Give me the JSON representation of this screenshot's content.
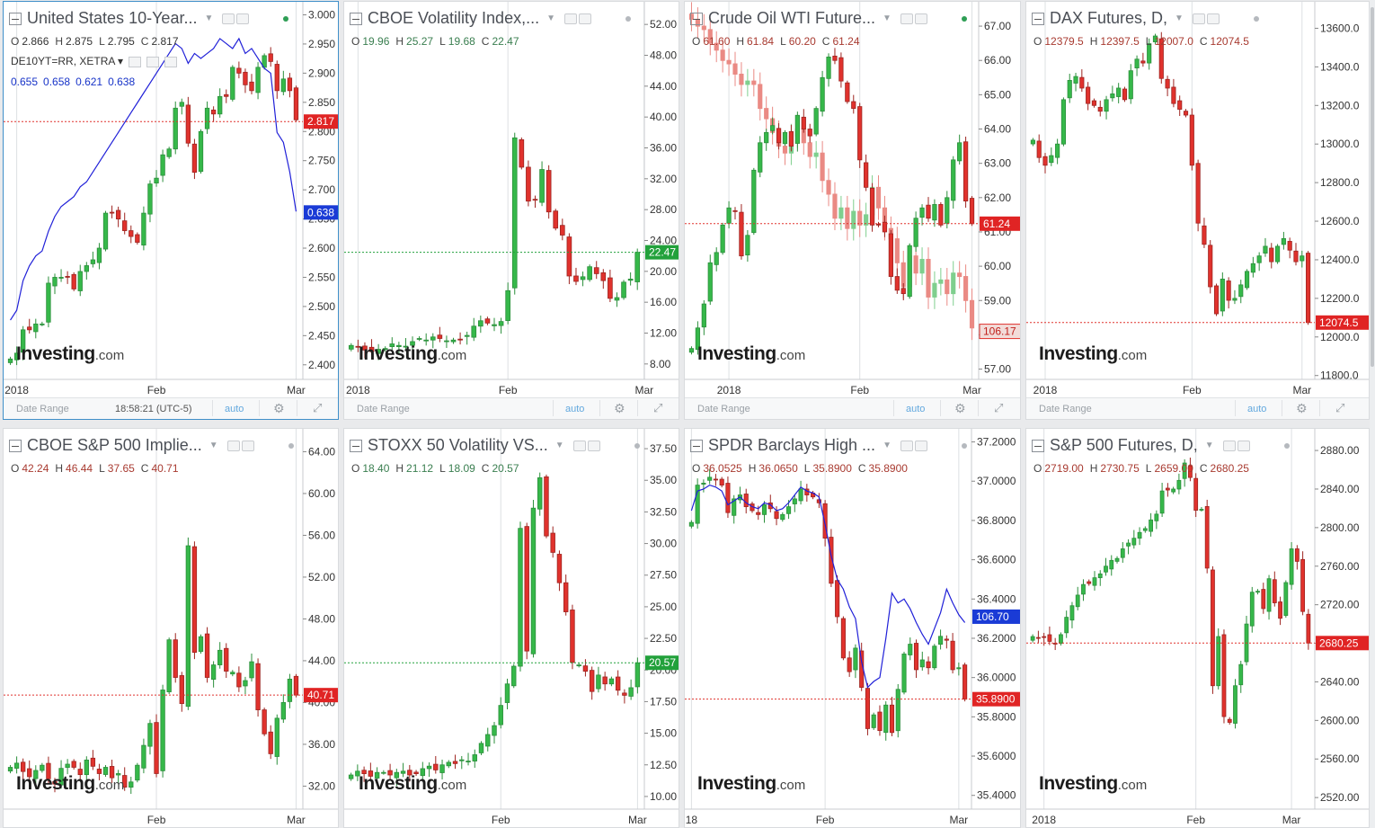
{
  "colors": {
    "up": "#36b84a",
    "down": "#e0322d",
    "up_price_tag": "#22a13b",
    "down_price_tag": "#e02424",
    "overlay_line": "#2020d8",
    "overlay_tag": "#1a3bd6",
    "grid": "#dde0e3",
    "price_line_down": "#e0322d",
    "price_line_up": "#22a13b"
  },
  "watermark": {
    "brand": "Investing",
    "suffix": ".com"
  },
  "bottom_bar": {
    "date_range": "Date Range",
    "time": "18:58:21 (UTC-5)",
    "auto": "auto"
  },
  "panels": [
    {
      "title": "United States 10-Year...",
      "active": true,
      "status": "green",
      "ohlc": [
        [
          "O",
          "2.866"
        ],
        [
          "H",
          "2.875"
        ],
        [
          "L",
          "2.795"
        ],
        [
          "C",
          "2.817"
        ]
      ],
      "subrow": "DE10YT=RR, XETRA",
      "subvals": [
        "0.655",
        "0.658",
        "0.621",
        "0.638"
      ],
      "show_time": true,
      "chart_data": {
        "type": "candlestick",
        "y_range": [
          2.375,
          3.01
        ],
        "decimals": 3,
        "y_ticks": [
          2.4,
          2.45,
          2.5,
          2.55,
          2.6,
          2.65,
          2.7,
          2.75,
          2.8,
          2.85,
          2.9,
          2.95,
          3.0
        ],
        "x_ticks": [
          {
            "label": "2018",
            "bar": 1
          },
          {
            "label": "Feb",
            "bar": 23
          },
          {
            "label": "Mar",
            "bar": 45
          }
        ],
        "closes": [
          2.41,
          2.42,
          2.46,
          2.46,
          2.47,
          2.47,
          2.54,
          2.55,
          2.55,
          2.55,
          2.53,
          2.56,
          2.57,
          2.58,
          2.6,
          2.66,
          2.66,
          2.65,
          2.63,
          2.62,
          2.61,
          2.66,
          2.71,
          2.72,
          2.76,
          2.77,
          2.84,
          2.85,
          2.78,
          2.73,
          2.8,
          2.84,
          2.83,
          2.86,
          2.86,
          2.91,
          2.9,
          2.88,
          2.87,
          2.91,
          2.93,
          2.92,
          2.87,
          2.89,
          2.87,
          2.82
        ],
        "price_tag": {
          "value": "2.817",
          "kind": "down",
          "at": 2.817
        },
        "overlay": {
          "values": [
            0.42,
            0.44,
            0.5,
            0.53,
            0.55,
            0.56,
            0.6,
            0.63,
            0.65,
            0.66,
            0.67,
            0.69,
            0.7,
            0.72,
            0.74,
            0.76,
            0.78,
            0.8,
            0.82,
            0.84,
            0.86,
            0.88,
            0.9,
            0.92,
            0.94,
            0.96,
            0.98,
            0.97,
            0.94,
            0.96,
            0.95,
            0.96,
            0.97,
            0.99,
            0.98,
            0.97,
            0.99,
            0.96,
            0.97,
            0.95,
            0.93,
            0.92,
            0.8,
            0.78,
            0.72,
            0.64
          ],
          "range": [
            0.3,
            1.05
          ],
          "tag": "0.638",
          "tag_at": 0.638
        }
      }
    },
    {
      "title": "CBOE Volatility Index,...",
      "status": "grey",
      "ohlc": [
        [
          "O",
          "19.96"
        ],
        [
          "H",
          "25.27"
        ],
        [
          "L",
          "19.68"
        ],
        [
          "C",
          "22.47"
        ]
      ],
      "ohlc_color": "up",
      "chart_data": {
        "type": "candlestick",
        "y_range": [
          6.0,
          54.0
        ],
        "decimals": 2,
        "y_ticks": [
          8,
          12,
          16,
          20,
          24,
          28,
          32,
          36,
          40,
          44,
          48,
          52
        ],
        "x_ticks": [
          {
            "label": "2018",
            "bar": 1
          },
          {
            "label": "Feb",
            "bar": 23
          },
          {
            "label": "Mar",
            "bar": 43
          }
        ],
        "closes": [
          10.4,
          10.2,
          9.8,
          9.6,
          9.9,
          10.0,
          10.6,
          10.4,
          10.3,
          10.9,
          11.3,
          11.1,
          11.5,
          11.3,
          11.0,
          11.1,
          11.2,
          11.7,
          12.9,
          13.6,
          13.3,
          13.1,
          13.5,
          17.5,
          37.3,
          33.5,
          29.1,
          29.3,
          33.2,
          27.7,
          25.6,
          24.7,
          19.4,
          18.7,
          19.3,
          20.6,
          19.7,
          18.8,
          16.5,
          16.6,
          18.6,
          19.0,
          22.47
        ],
        "price_tag": {
          "value": "22.47",
          "kind": "up",
          "at": 22.47
        }
      }
    },
    {
      "title": "Crude Oil WTI Future...",
      "status": "green",
      "ohlc": [
        [
          "O",
          "61.60"
        ],
        [
          "H",
          "61.84"
        ],
        [
          "L",
          "60.20"
        ],
        [
          "C",
          "61.24"
        ]
      ],
      "ohlc_color": "dn",
      "chart_data": {
        "type": "candlestick",
        "y_range": [
          56.7,
          67.5
        ],
        "decimals": 2,
        "y_ticks": [
          57,
          58,
          59,
          60,
          61,
          62,
          63,
          64,
          65,
          66,
          67
        ],
        "x_ticks": [
          {
            "label": "2018",
            "bar": 6
          },
          {
            "label": "Feb",
            "bar": 27
          },
          {
            "label": "Mar",
            "bar": 45
          }
        ],
        "closes": [
          57.6,
          58.2,
          58.9,
          60.1,
          60.4,
          61.2,
          61.7,
          61.6,
          60.3,
          60.9,
          62.8,
          63.6,
          63.9,
          64.1,
          63.6,
          63.9,
          63.5,
          64.4,
          64.0,
          63.8,
          64.6,
          65.5,
          66.1,
          66.0,
          65.4,
          64.8,
          64.6,
          63.1,
          62.3,
          61.2,
          61.2,
          61.0,
          59.7,
          59.3,
          59.2,
          60.6,
          61.4,
          61.7,
          61.4,
          61.8,
          61.2,
          62.0,
          63.1,
          63.6,
          61.9,
          61.24
        ],
        "price_tag": {
          "value": "61.24",
          "kind": "down",
          "at": 61.24
        },
        "overlay": {
          "values": [
            67.2,
            67.0,
            66.9,
            66.5,
            66.3,
            66.0,
            65.9,
            65.6,
            65.3,
            65.4,
            65.3,
            64.6,
            64.3,
            63.9,
            63.5,
            63.3,
            63.8,
            64.0,
            63.6,
            63.2,
            63.3,
            62.5,
            62.1,
            61.4,
            61.7,
            61.1,
            61.6,
            61.2,
            61.5,
            62.3,
            61.7,
            61.1,
            60.8,
            60.1,
            59.4,
            60.3,
            59.8,
            60.2,
            59.1,
            59.5,
            59.6,
            59.2,
            59.8,
            59.7,
            59.0,
            58.2
          ],
          "range": [
            56.7,
            67.5
          ],
          "candle": true,
          "tag": "106.17",
          "tag_at": 58.1
        }
      }
    },
    {
      "title": "DAX Futures, D,",
      "status": "grey",
      "ohlc": [
        [
          "O",
          "12379.5"
        ],
        [
          "H",
          "12397.5"
        ],
        [
          "L",
          "12007.0"
        ],
        [
          "C",
          "12074.5"
        ]
      ],
      "ohlc_color": "dn",
      "chart_data": {
        "type": "candlestick",
        "y_range": [
          11780,
          13700
        ],
        "decimals": 1,
        "y_ticks": [
          11800,
          12000,
          12200,
          12400,
          12600,
          12800,
          13000,
          13200,
          13400,
          13600
        ],
        "x_ticks": [
          {
            "label": "2018",
            "bar": 2
          },
          {
            "label": "Feb",
            "bar": 26
          },
          {
            "label": "Mar",
            "bar": 44
          }
        ],
        "closes": [
          13020,
          12930,
          12890,
          12940,
          13000,
          13230,
          13330,
          13350,
          13290,
          13210,
          13200,
          13170,
          13230,
          13260,
          13290,
          13230,
          13380,
          13440,
          13420,
          13520,
          13560,
          13340,
          13290,
          13210,
          13180,
          13150,
          12890,
          12590,
          12480,
          12260,
          12120,
          12300,
          12190,
          12200,
          12270,
          12340,
          12380,
          12420,
          12470,
          12390,
          12470,
          12510,
          12450,
          12390,
          12420,
          12074.5
        ],
        "price_tag": {
          "value": "12074.5",
          "kind": "down",
          "at": 12074.5
        }
      }
    },
    {
      "title": "CBOE S&P 500 Implie...",
      "status": "grey",
      "ohlc": [
        [
          "O",
          "42.24"
        ],
        [
          "H",
          "46.44"
        ],
        [
          "L",
          "37.65"
        ],
        [
          "C",
          "40.71"
        ]
      ],
      "ohlc_color": "dn",
      "chart_data": {
        "type": "candlestick",
        "y_range": [
          29.8,
          65.5
        ],
        "decimals": 2,
        "y_ticks": [
          32,
          36,
          40,
          44,
          48,
          52,
          56,
          60,
          64
        ],
        "x_ticks": [
          {
            "label": "Feb",
            "bar": 23
          },
          {
            "label": "Mar",
            "bar": 45
          }
        ],
        "closes": [
          33.8,
          34.2,
          33.4,
          32.9,
          33.5,
          34.0,
          32.7,
          32.2,
          33.7,
          34.1,
          33.8,
          33.1,
          34.5,
          33.9,
          33.2,
          33.8,
          32.8,
          33.2,
          31.9,
          32.4,
          34.0,
          35.9,
          38.0,
          33.2,
          41.2,
          46.0,
          42.4,
          39.9,
          55.0,
          44.8,
          46.3,
          42.4,
          43.6,
          45.0,
          43.0,
          42.9,
          41.5,
          42.1,
          43.9,
          39.3,
          37.0,
          35.1,
          38.5,
          40.0,
          42.24,
          40.71
        ],
        "price_tag": {
          "value": "40.71",
          "kind": "down",
          "at": 40.71
        }
      }
    },
    {
      "title": "STOXX 50 Volatility VS...",
      "status": "grey",
      "ohlc": [
        [
          "O",
          "18.40"
        ],
        [
          "H",
          "21.12"
        ],
        [
          "L",
          "18.09"
        ],
        [
          "C",
          "20.57"
        ]
      ],
      "ohlc_color": "up",
      "chart_data": {
        "type": "candlestick",
        "y_range": [
          9.0,
          38.5
        ],
        "decimals": 2,
        "y_ticks": [
          10,
          12.5,
          15,
          17.5,
          20,
          22.5,
          25,
          27.5,
          30,
          32.5,
          35,
          37.5
        ],
        "x_ticks": [
          {
            "label": "Feb",
            "bar": 23
          },
          {
            "label": "Mar",
            "bar": 44
          }
        ],
        "closes": [
          11.7,
          12.0,
          11.8,
          11.6,
          11.9,
          11.9,
          11.7,
          11.9,
          12.0,
          11.7,
          11.8,
          12.2,
          12.4,
          12.1,
          12.5,
          12.7,
          12.6,
          12.9,
          12.8,
          13.3,
          14.2,
          14.9,
          15.6,
          17.2,
          18.9,
          20.3,
          31.2,
          21.5,
          32.8,
          35.2,
          30.6,
          29.3,
          26.9,
          24.6,
          20.6,
          20.4,
          19.9,
          18.3,
          19.6,
          18.9,
          19.3,
          18.4,
          18.0,
          18.6,
          20.57
        ],
        "price_tag": {
          "value": "20.57",
          "kind": "up",
          "at": 20.57
        }
      }
    },
    {
      "title": "SPDR Barclays High ...",
      "status": "grey",
      "ohlc": [
        [
          "O",
          "36.0525"
        ],
        [
          "H",
          "36.0650"
        ],
        [
          "L",
          "35.8900"
        ],
        [
          "C",
          "35.8900"
        ]
      ],
      "ohlc_color": "dn",
      "chart_data": {
        "type": "candlestick",
        "y_range": [
          35.33,
          37.23
        ],
        "decimals": 4,
        "y_ticks": [
          35.4,
          35.6,
          35.8,
          36.0,
          36.2,
          36.4,
          36.6,
          36.8,
          37.0,
          37.2
        ],
        "x_ticks": [
          {
            "label": "18",
            "bar": 0
          },
          {
            "label": "Feb",
            "bar": 22
          },
          {
            "label": "Mar",
            "bar": 44
          }
        ],
        "closes": [
          36.79,
          36.98,
          36.99,
          37.02,
          37.01,
          36.98,
          36.84,
          36.91,
          36.93,
          36.87,
          36.85,
          36.83,
          36.88,
          36.86,
          36.81,
          36.83,
          36.87,
          36.91,
          36.96,
          36.93,
          36.92,
          36.89,
          36.71,
          36.48,
          36.31,
          36.1,
          36.03,
          36.15,
          35.95,
          35.74,
          35.81,
          35.73,
          35.86,
          35.72,
          35.94,
          36.12,
          36.17,
          36.04,
          36.09,
          36.05,
          36.16,
          36.21,
          36.19,
          36.04,
          36.05,
          35.89
        ],
        "price_tag": {
          "value": "35.8900",
          "kind": "down",
          "at": 35.89
        },
        "overlay": {
          "values": [
            36.85,
            36.95,
            36.96,
            36.98,
            36.97,
            36.95,
            36.88,
            36.9,
            36.92,
            36.89,
            36.87,
            36.86,
            36.89,
            36.88,
            36.85,
            36.86,
            36.89,
            36.93,
            36.97,
            36.95,
            36.94,
            36.92,
            36.78,
            36.62,
            36.5,
            36.45,
            36.36,
            36.3,
            36.08,
            35.95,
            35.98,
            36.0,
            36.2,
            36.43,
            36.38,
            36.4,
            36.35,
            36.28,
            36.22,
            36.17,
            36.25,
            36.33,
            36.45,
            36.38,
            36.32,
            36.28
          ],
          "range": [
            35.33,
            37.23
          ],
          "tag": "106.70",
          "tag_at": 36.31
        }
      }
    },
    {
      "title": "S&P 500 Futures, D,",
      "status": "grey",
      "ohlc": [
        [
          "O",
          "2719.00"
        ],
        [
          "H",
          "2730.75"
        ],
        [
          "L",
          "2659.00"
        ],
        [
          "C",
          "2680.25"
        ]
      ],
      "ohlc_color": "dn",
      "chart_data": {
        "type": "candlestick",
        "y_range": [
          2508,
          2895
        ],
        "decimals": 2,
        "y_ticks": [
          2520,
          2560,
          2600,
          2640,
          2680,
          2720,
          2760,
          2800,
          2840,
          2880
        ],
        "x_ticks": [
          {
            "label": "2018",
            "bar": 2
          },
          {
            "label": "Feb",
            "bar": 29
          },
          {
            "label": "Mar",
            "bar": 46
          }
        ],
        "closes": [
          2687,
          2686,
          2686,
          2682,
          2680,
          2689,
          2707,
          2719,
          2730,
          2741,
          2742,
          2748,
          2752,
          2760,
          2766,
          2768,
          2778,
          2784,
          2789,
          2795,
          2799,
          2808,
          2814,
          2838,
          2839,
          2840,
          2849,
          2867,
          2852,
          2818,
          2819,
          2758,
          2636,
          2687,
          2604,
          2598,
          2636,
          2658,
          2700,
          2733,
          2734,
          2716,
          2747,
          2722,
          2706,
          2743,
          2778,
          2765,
          2713,
          2680.25
        ],
        "price_tag": {
          "value": "2680.25",
          "kind": "down",
          "at": 2680.25
        }
      }
    }
  ]
}
